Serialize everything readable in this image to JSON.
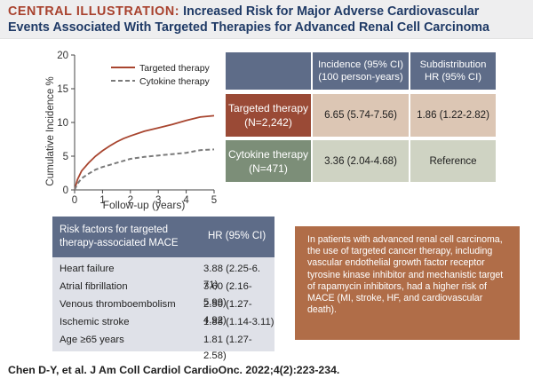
{
  "header": {
    "tag": "CENTRAL ILLUSTRATION:",
    "title_line1": "Increased Risk for Major Adverse Cardiovascular",
    "title_line2": "Events Associated With Targeted Therapies for Advanced Renal Cell Carcinoma"
  },
  "chart_data": {
    "type": "line",
    "xlabel": "Follow-up (years)",
    "ylabel": "Cumulative Incidence %",
    "xlim": [
      0,
      5
    ],
    "ylim": [
      0,
      20
    ],
    "x_ticks": [
      "0",
      "1",
      "2",
      "3",
      "4",
      "5"
    ],
    "y_ticks": [
      "0",
      "5",
      "10",
      "15",
      "20"
    ],
    "legend_position": "top-right",
    "grid": false,
    "series": [
      {
        "name": "Targeted therapy",
        "color": "#a8452f",
        "style": "solid",
        "x": [
          0,
          0.1,
          0.25,
          0.5,
          0.75,
          1,
          1.25,
          1.5,
          1.75,
          2,
          2.5,
          3,
          3.5,
          4,
          4.5,
          5
        ],
        "y": [
          0,
          1.5,
          2.8,
          4.0,
          5.0,
          5.8,
          6.5,
          7.1,
          7.6,
          8.0,
          8.7,
          9.2,
          9.7,
          10.3,
          10.8,
          11.0
        ]
      },
      {
        "name": "Cytokine therapy",
        "color": "#7a7a7a",
        "style": "dashed",
        "x": [
          0,
          0.1,
          0.25,
          0.5,
          0.75,
          1,
          1.25,
          1.5,
          1.75,
          2,
          2.5,
          3,
          3.5,
          4,
          4.5,
          5
        ],
        "y": [
          0,
          0.9,
          1.7,
          2.4,
          3.0,
          3.4,
          3.7,
          4.0,
          4.3,
          4.6,
          4.9,
          5.1,
          5.3,
          5.5,
          5.9,
          6.0
        ]
      }
    ]
  },
  "incidence_table": {
    "col1_header": "Incidence (95% CI)\n(100 person-years)",
    "col2_header": "Subdistribution\nHR (95% CI)",
    "rows": [
      {
        "label": "Targeted therapy\n(N=2,242)",
        "incidence": "6.65 (5.74-7.56)",
        "hr": "1.86 (1.22-2.82)"
      },
      {
        "label": "Cytokine therapy\n(N=471)",
        "incidence": "3.36 (2.04-4.68)",
        "hr": "Reference"
      }
    ]
  },
  "risk_table": {
    "header_left": "Risk factors for targeted therapy-associated MACE",
    "header_right": "HR (95% CI)",
    "rows": [
      {
        "factor": "Heart failure",
        "hr": "3.88 (2.25-6. 71)"
      },
      {
        "factor": "Atrial fibrillation",
        "hr": "3.60 (2.16-5.99)"
      },
      {
        "factor": "Venous thromboembolism",
        "hr": "2.50 (1.27-4.92)"
      },
      {
        "factor": "Ischemic stroke",
        "hr": "1.88 (1.14-3.11)"
      },
      {
        "factor": "Age ≥65 years",
        "hr": "1.81 (1.27-2.58)"
      }
    ]
  },
  "summary": "In patients with advanced renal cell carcinoma, the use of targeted cancer therapy, including vascular endothelial growth factor receptor tyrosine kinase inhibitor and mechanistic target of rapamycin inhibitors, had a higher risk of MACE (MI, stroke, HF, and cardiovascular death).",
  "citation": "Chen D-Y, et al. J Am Coll Cardiol CardioOnc. 2022;4(2):223-234."
}
